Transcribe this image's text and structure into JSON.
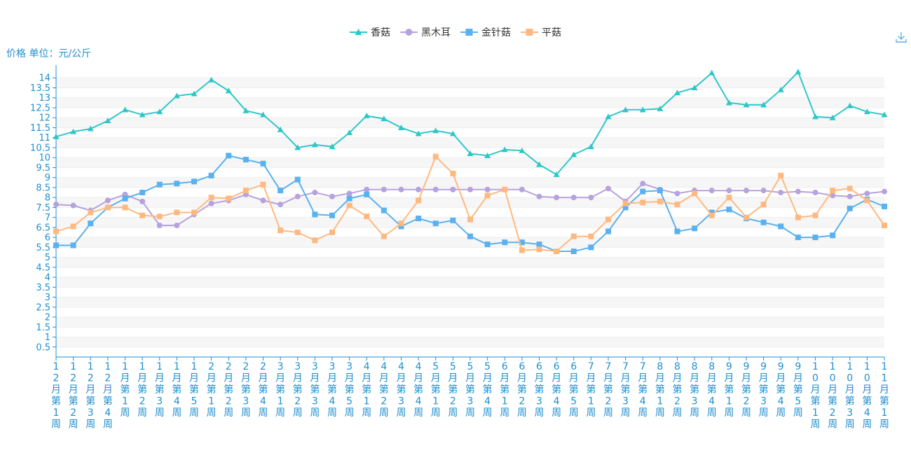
{
  "chart_data": {
    "type": "line",
    "ylabel": "价格 单位：元/公斤",
    "ylim": [
      0,
      14.5
    ],
    "yticks": [
      0.5,
      1,
      1.5,
      2,
      2.5,
      3,
      3.5,
      4,
      4.5,
      5,
      5.5,
      6,
      6.5,
      7,
      7.5,
      8,
      8.5,
      9,
      9.5,
      10,
      10.5,
      11,
      11.5,
      12,
      12.5,
      13,
      13.5,
      14
    ],
    "categories": [
      "12月第1周",
      "12月第2周",
      "12月第3周",
      "12月第4周",
      "1月第1周",
      "1月第2周",
      "1月第3周",
      "1月第4周",
      "1月第5周",
      "2月第1周",
      "2月第2周",
      "2月第3周",
      "2月第4周",
      "3月第1周",
      "3月第2周",
      "3月第3周",
      "3月第4周",
      "3月第5周",
      "4月第1周",
      "4月第2周",
      "4月第3周",
      "4月第4周",
      "5月第1周",
      "5月第2周",
      "5月第3周",
      "5月第4周",
      "6月第1周",
      "6月第2周",
      "6月第3周",
      "6月第4周",
      "6月第5周",
      "7月第1周",
      "7月第2周",
      "7月第3周",
      "7月第4周",
      "8月第1周",
      "8月第2周",
      "8月第3周",
      "8月第4周",
      "9月第1周",
      "9月第2周",
      "9月第3周",
      "9月第4周",
      "9月第5周",
      "10月第1周",
      "10月第2周",
      "10月第3周",
      "10月第4周",
      "11月第1周"
    ],
    "series": [
      {
        "name": "香菇",
        "color": "#2ec7c9",
        "symbol": "triangle",
        "values": [
          11.05,
          11.3,
          11.45,
          11.85,
          12.4,
          12.15,
          12.3,
          13.1,
          13.2,
          13.9,
          13.35,
          12.35,
          12.15,
          11.4,
          10.5,
          10.65,
          10.55,
          11.25,
          12.1,
          11.95,
          11.5,
          11.2,
          11.35,
          11.2,
          10.2,
          10.1,
          10.4,
          10.35,
          9.65,
          9.15,
          10.15,
          10.55,
          12.05,
          12.4,
          12.4,
          12.45,
          13.25,
          13.5,
          14.25,
          12.75,
          12.65,
          12.65,
          13.4,
          14.3,
          12.05,
          12.0,
          12.6,
          12.3,
          12.15
        ]
      },
      {
        "name": "黑木耳",
        "color": "#b6a2de",
        "symbol": "circle",
        "values": [
          7.65,
          7.6,
          7.35,
          7.85,
          8.15,
          7.8,
          6.6,
          6.6,
          7.15,
          7.7,
          7.85,
          8.15,
          7.85,
          7.65,
          8.05,
          8.25,
          8.05,
          8.2,
          8.4,
          8.4,
          8.4,
          8.4,
          8.4,
          8.4,
          8.4,
          8.4,
          8.4,
          8.4,
          8.05,
          8.0,
          8.0,
          8.0,
          8.45,
          7.8,
          8.7,
          8.4,
          8.2,
          8.35,
          8.35,
          8.35,
          8.35,
          8.35,
          8.25,
          8.3,
          8.25,
          8.1,
          8.05,
          8.2,
          8.3
        ]
      },
      {
        "name": "金针菇",
        "color": "#5ab1ef",
        "symbol": "rect",
        "values": [
          5.6,
          5.6,
          6.7,
          7.5,
          7.95,
          8.25,
          8.65,
          8.7,
          8.8,
          9.1,
          10.1,
          9.9,
          9.7,
          8.35,
          8.9,
          7.15,
          7.1,
          7.95,
          8.15,
          7.35,
          6.55,
          6.95,
          6.7,
          6.85,
          6.05,
          5.65,
          5.75,
          5.75,
          5.65,
          5.3,
          5.3,
          5.5,
          6.3,
          7.5,
          8.3,
          8.35,
          6.3,
          6.45,
          7.25,
          7.4,
          6.95,
          6.75,
          6.55,
          6.0,
          6.0,
          6.1,
          7.45,
          7.9,
          7.55
        ]
      },
      {
        "name": "平菇",
        "color": "#ffb980",
        "symbol": "rect",
        "values": [
          6.3,
          6.55,
          7.25,
          7.5,
          7.5,
          7.1,
          7.05,
          7.25,
          7.25,
          8.0,
          7.95,
          8.35,
          8.65,
          6.35,
          6.25,
          5.85,
          6.25,
          7.6,
          7.05,
          6.05,
          6.7,
          7.85,
          10.05,
          9.2,
          6.9,
          8.1,
          8.4,
          5.35,
          5.4,
          5.3,
          6.05,
          6.05,
          6.9,
          7.7,
          7.75,
          7.8,
          7.65,
          8.2,
          7.1,
          8.0,
          7.0,
          7.65,
          9.1,
          7.0,
          7.1,
          8.35,
          8.45,
          7.85,
          6.6
        ]
      }
    ]
  },
  "legend": {
    "items": [
      "香菇",
      "黑木耳",
      "金针菇",
      "平菇"
    ]
  },
  "toolbar": {
    "download_icon": "download-icon"
  }
}
